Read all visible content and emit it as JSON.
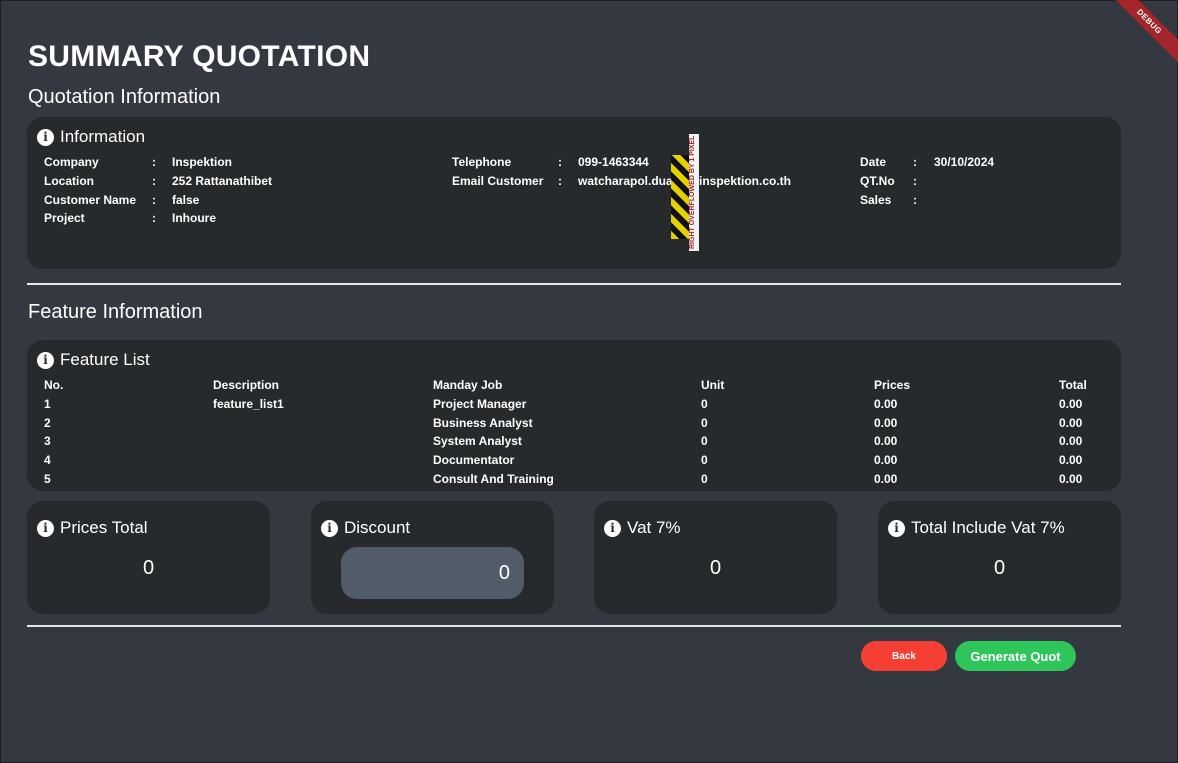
{
  "page": {
    "title": "SUMMARY QUOTATION",
    "debug_label": "DEBUG"
  },
  "quotation": {
    "heading": "Quotation Information",
    "card_title": "Information",
    "company": {
      "label": "Company",
      "value": "Inspektion"
    },
    "location": {
      "label": "Location",
      "value": "252 Rattanathibet"
    },
    "customer": {
      "label": "Customer Name",
      "value": "false"
    },
    "project": {
      "label": "Project",
      "value": "Inhoure"
    },
    "telephone": {
      "label": "Telephone",
      "value": "099-1463344"
    },
    "email": {
      "label": "Email Customer",
      "value": "watcharapol.dua"
    },
    "email_tail": "inspektion.co.th",
    "date": {
      "label": "Date",
      "value": "30/10/2024"
    },
    "qtno": {
      "label": "QT.No",
      "value": ""
    },
    "sales": {
      "label": "Sales",
      "value": ""
    },
    "overflow_text": "RIGHT OVERFLOWED BY 1 PIXEL"
  },
  "feature": {
    "heading": "Feature Information",
    "card_title": "Feature List",
    "columns": [
      "No.",
      "Description",
      "Manday Job",
      "Unit",
      "Prices",
      "Total"
    ],
    "rows": [
      [
        "1",
        "feature_list1",
        "Project Manager",
        "0",
        "0.00",
        "0.00"
      ],
      [
        "2",
        "",
        "Business Analyst",
        "0",
        "0.00",
        "0.00"
      ],
      [
        "3",
        "",
        "System Analyst",
        "0",
        "0.00",
        "0.00"
      ],
      [
        "4",
        "",
        "Documentator",
        "0",
        "0.00",
        "0.00"
      ],
      [
        "5",
        "",
        "Consult And Training",
        "0",
        "0.00",
        "0.00"
      ]
    ]
  },
  "totals": {
    "prices_total": {
      "label": "Prices Total",
      "value": "0"
    },
    "discount": {
      "label": "Discount",
      "value": "0"
    },
    "vat": {
      "label": "Vat 7%",
      "value": "0"
    },
    "total_vat": {
      "label": "Total Include Vat 7%",
      "value": "0"
    }
  },
  "actions": {
    "back": "Back",
    "generate": "Generate Quot"
  },
  "colors": {
    "background": "#343840",
    "card": "#272a2c",
    "back_button": "#f53f34",
    "generate_button": "#2ec55b",
    "discount_field": "#525c68"
  },
  "icons": {
    "info": "info-circle-icon"
  }
}
